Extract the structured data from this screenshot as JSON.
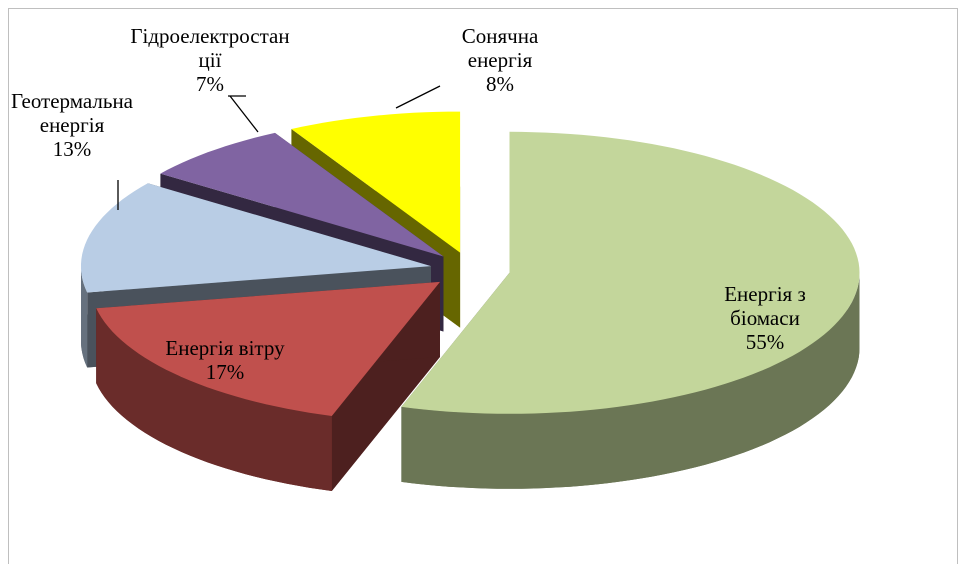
{
  "chart_data": {
    "type": "pie",
    "categories": [
      "Енергія з біомаси",
      "Енергія вітру",
      "Геотермальна енергія",
      "Гідроелектростанції",
      "Сонячна енергія"
    ],
    "values": [
      55,
      17,
      13,
      7,
      8
    ],
    "value_labels": [
      "55%",
      "17%",
      "13%",
      "7%",
      "8%"
    ],
    "colors": [
      "#c3d69b",
      "#c0504d",
      "#b9cde5",
      "#8064a2",
      "#ffff00"
    ]
  }
}
